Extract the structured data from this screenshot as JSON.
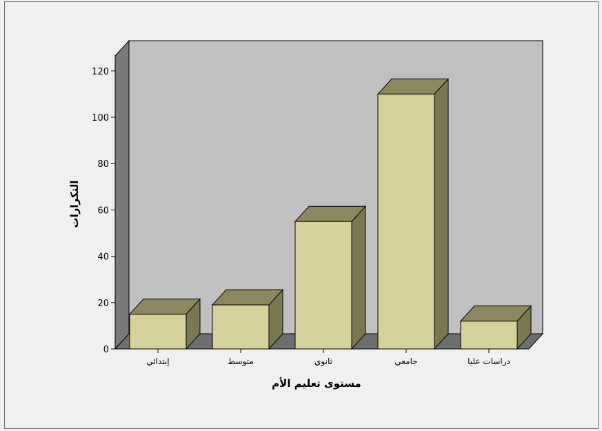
{
  "chart_data": {
    "type": "bar",
    "title": "",
    "xlabel": "مستوى تعليم الأم",
    "ylabel": "التكرارات",
    "categories": [
      "إبتدائي",
      "متوسط",
      "ثانوي",
      "جامعي",
      "دراسات عليا"
    ],
    "values": [
      15,
      19,
      55,
      110,
      12
    ],
    "ylim": [
      0,
      120
    ],
    "yticks": [
      "0",
      "20",
      "40",
      "60",
      "80",
      "100",
      "120"
    ],
    "grid": false,
    "legend": "none",
    "colors": {
      "bar_front": "#d6d19a",
      "bar_top": "#8d8760",
      "bar_side": "#7c7753",
      "back_wall": "#c0c0c0",
      "side_wall": "#7a7a7a",
      "floor": "#6e6e6e",
      "background": "#f0f0f0"
    }
  }
}
